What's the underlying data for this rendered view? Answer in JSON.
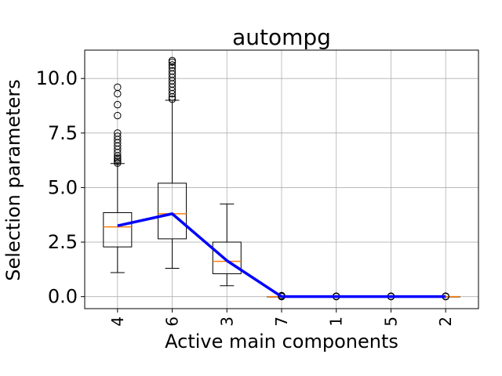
{
  "chart_data": {
    "type": "box",
    "title": "autompg",
    "xlabel": "Active main components",
    "ylabel": "Selection parameters",
    "categories": [
      "4",
      "6",
      "3",
      "7",
      "1",
      "5",
      "2"
    ],
    "ylim": [
      -0.55,
      11.3
    ],
    "yticks": [
      0.0,
      2.5,
      5.0,
      7.5,
      10.0
    ],
    "ytick_labels": [
      "0.0",
      "2.5",
      "5.0",
      "7.5",
      "10.0"
    ],
    "grid": true,
    "boxes": [
      {
        "label": "4",
        "whislo": 1.1,
        "q1": 2.28,
        "med": 3.2,
        "q3": 3.85,
        "whishi": 6.1,
        "fliers": [
          6.12,
          6.2,
          6.28,
          6.35,
          6.45,
          6.6,
          6.75,
          6.9,
          7.05,
          7.2,
          7.35,
          7.5,
          8.3,
          8.8,
          9.3,
          9.6
        ]
      },
      {
        "label": "6",
        "whislo": 1.3,
        "q1": 2.65,
        "med": 3.8,
        "q3": 5.2,
        "whishi": 9.0,
        "fliers": [
          9.05,
          9.15,
          9.3,
          9.45,
          9.6,
          9.75,
          9.9,
          10.05,
          10.2,
          10.35,
          10.5,
          10.62,
          10.75,
          10.82
        ]
      },
      {
        "label": "3",
        "whislo": 0.5,
        "q1": 1.05,
        "med": 1.62,
        "q3": 2.5,
        "whishi": 4.25,
        "fliers": []
      },
      {
        "label": "7",
        "whislo": 0.0,
        "q1": 0.0,
        "med": 0.0,
        "q3": 0.0,
        "whishi": 0.0,
        "fliers": [
          0.0,
          0.02,
          0.05
        ]
      },
      {
        "label": "1",
        "whislo": 0.0,
        "q1": 0.0,
        "med": 0.0,
        "q3": 0.0,
        "whishi": 0.0,
        "fliers": [
          0.0,
          0.02
        ]
      },
      {
        "label": "5",
        "whislo": 0.0,
        "q1": 0.0,
        "med": 0.0,
        "q3": 0.0,
        "whishi": 0.0,
        "fliers": [
          0.0,
          0.02
        ]
      },
      {
        "label": "2",
        "whislo": 0.0,
        "q1": 0.0,
        "med": 0.0,
        "q3": 0.0,
        "whishi": 0.0,
        "fliers": [
          0.0,
          0.02
        ]
      }
    ],
    "mean_line": {
      "values": [
        3.25,
        3.8,
        1.65,
        0.0,
        0.0,
        0.0,
        0.0
      ],
      "color": "#0000ff"
    },
    "colors": {
      "box": "#000000",
      "median": "#ff7f0e",
      "grid": "#b0b0b0",
      "flier": "#000000"
    }
  }
}
